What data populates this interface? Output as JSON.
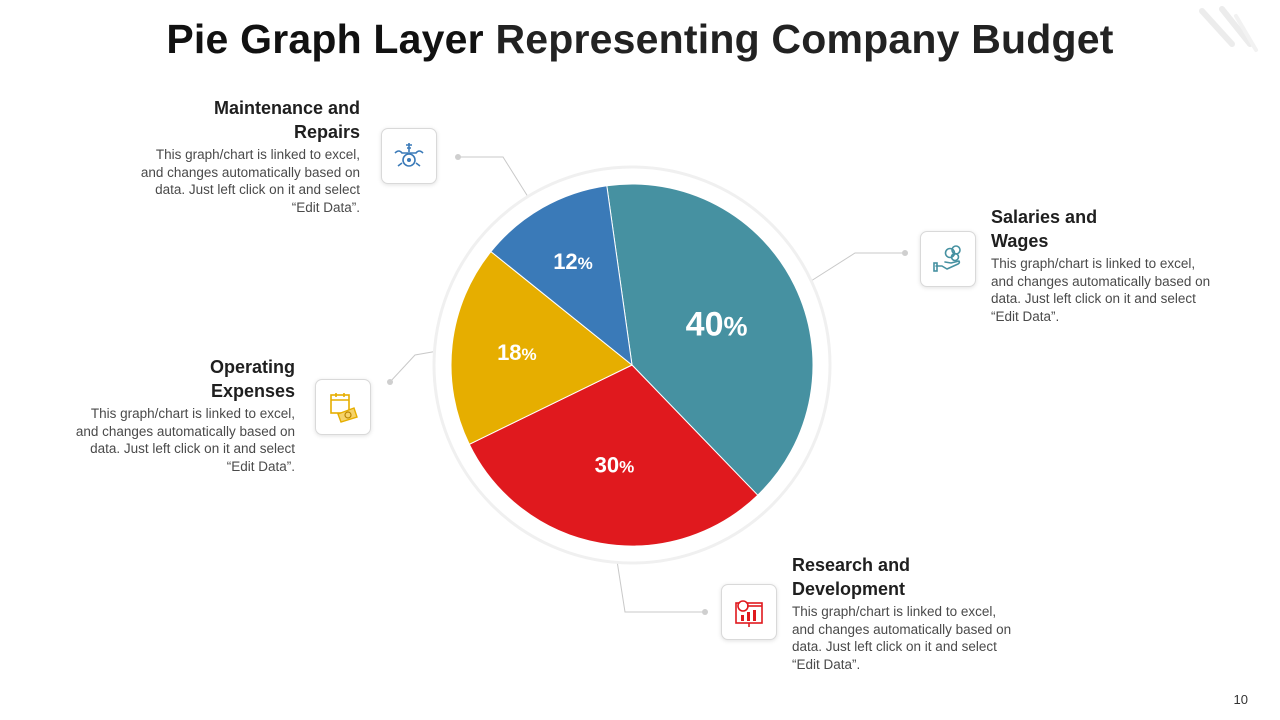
{
  "slide": {
    "title_bold": "Pie Graph Layer",
    "title_rest": "Representing Company Budget",
    "page_number": "10"
  },
  "sections": [
    {
      "id": "salaries",
      "heading_line1": "Salaries and",
      "heading_line2": "Wages",
      "description": "This graph/chart is linked to excel, and changes automatically based on data. Just left click on it and select “Edit Data”.",
      "icon": "hand-coins-icon",
      "color": "#4691a1"
    },
    {
      "id": "research",
      "heading_line1": "Research and",
      "heading_line2": "Development",
      "description": "This graph/chart is linked to excel, and changes automatically based on data. Just left click on it and select “Edit Data”.",
      "icon": "research-chart-icon",
      "color": "#e0191e"
    },
    {
      "id": "operating",
      "heading_line1": "Operating",
      "heading_line2": "Expenses",
      "description": "This graph/chart is linked to excel, and changes automatically based on data. Just left click on it and select “Edit Data”.",
      "icon": "calendar-money-icon",
      "color": "#e6ae00"
    },
    {
      "id": "maintenance",
      "heading_line1": "Maintenance and",
      "heading_line2": "Repairs",
      "description": "This graph/chart is linked to excel, and changes automatically based on data. Just left click on it and select “Edit Data”.",
      "icon": "tools-gear-icon",
      "color": "#3a7ab8"
    }
  ],
  "chart_data": {
    "type": "pie",
    "title": "Pie Graph Layer Representing Company Budget",
    "categories": [
      "Salaries and Wages",
      "Research and Development",
      "Operating Expenses",
      "Maintenance and Repairs"
    ],
    "values": [
      40,
      30,
      18,
      12
    ],
    "labels": [
      "40",
      "30",
      "18",
      "12"
    ],
    "unit": "%",
    "colors": [
      "#4691a1",
      "#e0191e",
      "#e6ae00",
      "#3a7ab8"
    ],
    "start_angle_deg": -8,
    "direction": "clockwise"
  }
}
